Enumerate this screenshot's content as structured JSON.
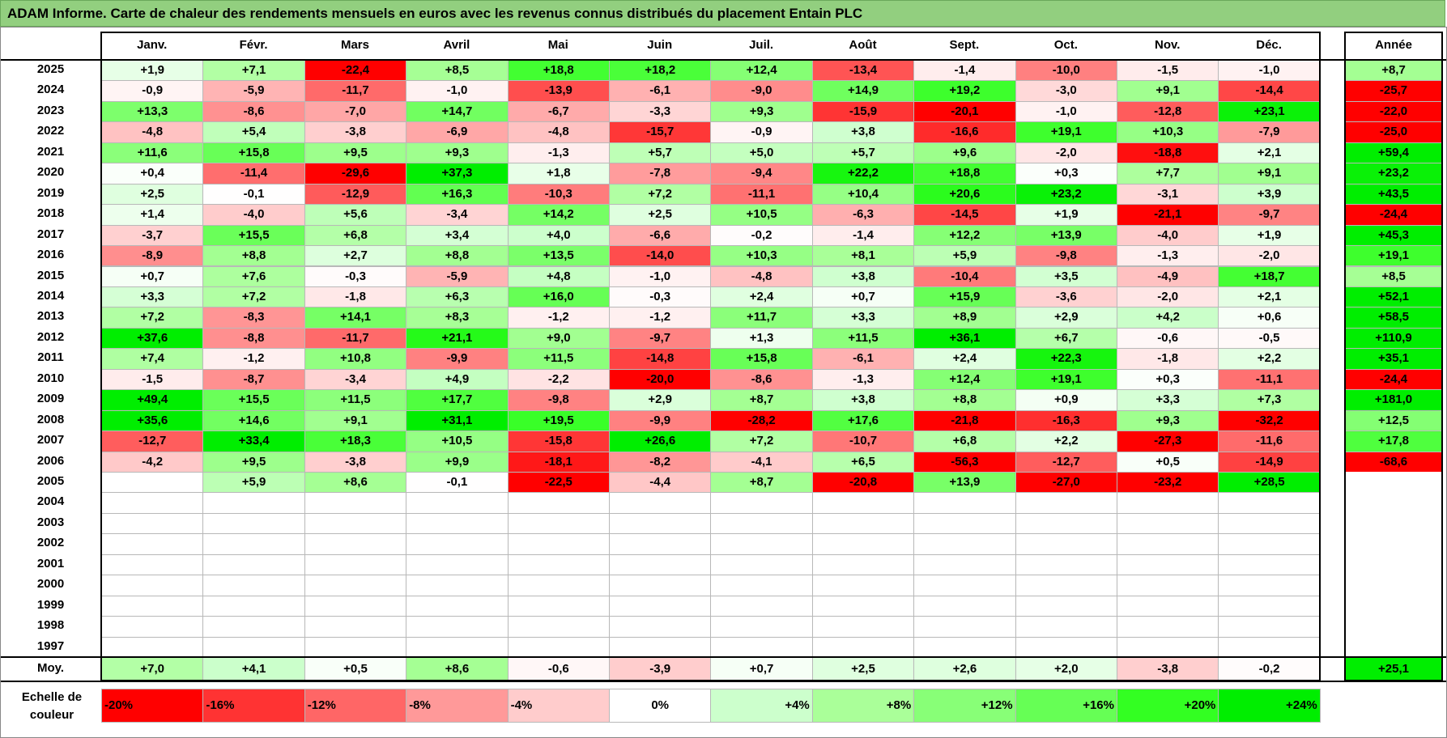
{
  "title": "ADAM Informe. Carte de chaleur des rendements mensuels en euros avec les revenus connus distribués du placement Entain PLC",
  "chart_data": {
    "type": "heatmap",
    "months": [
      "Janv.",
      "Févr.",
      "Mars",
      "Avril",
      "Mai",
      "Juin",
      "Juil.",
      "Août",
      "Sept.",
      "Oct.",
      "Nov.",
      "Déc."
    ],
    "year_header": "Année",
    "rows": [
      {
        "year": "2025",
        "values": [
          "+1,9",
          "+7,1",
          "-22,4",
          "+8,5",
          "+18,8",
          "+18,2",
          "+12,4",
          "-13,4",
          "-1,4",
          "-10,0",
          "-1,5",
          "-1,0"
        ],
        "annual": "+8,7"
      },
      {
        "year": "2024",
        "values": [
          "-0,9",
          "-5,9",
          "-11,7",
          "-1,0",
          "-13,9",
          "-6,1",
          "-9,0",
          "+14,9",
          "+19,2",
          "-3,0",
          "+9,1",
          "-14,4"
        ],
        "annual": "-25,7"
      },
      {
        "year": "2023",
        "values": [
          "+13,3",
          "-8,6",
          "-7,0",
          "+14,7",
          "-6,7",
          "-3,3",
          "+9,3",
          "-15,9",
          "-20,1",
          "-1,0",
          "-12,8",
          "+23,1"
        ],
        "annual": "-22,0"
      },
      {
        "year": "2022",
        "values": [
          "-4,8",
          "+5,4",
          "-3,8",
          "-6,9",
          "-4,8",
          "-15,7",
          "-0,9",
          "+3,8",
          "-16,6",
          "+19,1",
          "+10,3",
          "-7,9"
        ],
        "annual": "-25,0"
      },
      {
        "year": "2021",
        "values": [
          "+11,6",
          "+15,8",
          "+9,5",
          "+9,3",
          "-1,3",
          "+5,7",
          "+5,0",
          "+5,7",
          "+9,6",
          "-2,0",
          "-18,8",
          "+2,1"
        ],
        "annual": "+59,4"
      },
      {
        "year": "2020",
        "values": [
          "+0,4",
          "-11,4",
          "-29,6",
          "+37,3",
          "+1,8",
          "-7,8",
          "-9,4",
          "+22,2",
          "+18,8",
          "+0,3",
          "+7,7",
          "+9,1"
        ],
        "annual": "+23,2"
      },
      {
        "year": "2019",
        "values": [
          "+2,5",
          "-0,1",
          "-12,9",
          "+16,3",
          "-10,3",
          "+7,2",
          "-11,1",
          "+10,4",
          "+20,6",
          "+23,2",
          "-3,1",
          "+3,9"
        ],
        "annual": "+43,5"
      },
      {
        "year": "2018",
        "values": [
          "+1,4",
          "-4,0",
          "+5,6",
          "-3,4",
          "+14,2",
          "+2,5",
          "+10,5",
          "-6,3",
          "-14,5",
          "+1,9",
          "-21,1",
          "-9,7"
        ],
        "annual": "-24,4"
      },
      {
        "year": "2017",
        "values": [
          "-3,7",
          "+15,5",
          "+6,8",
          "+3,4",
          "+4,0",
          "-6,6",
          "-0,2",
          "-1,4",
          "+12,2",
          "+13,9",
          "-4,0",
          "+1,9"
        ],
        "annual": "+45,3"
      },
      {
        "year": "2016",
        "values": [
          "-8,9",
          "+8,8",
          "+2,7",
          "+8,8",
          "+13,5",
          "-14,0",
          "+10,3",
          "+8,1",
          "+5,9",
          "-9,8",
          "-1,3",
          "-2,0"
        ],
        "annual": "+19,1"
      },
      {
        "year": "2015",
        "values": [
          "+0,7",
          "+7,6",
          "-0,3",
          "-5,9",
          "+4,8",
          "-1,0",
          "-4,8",
          "+3,8",
          "-10,4",
          "+3,5",
          "-4,9",
          "+18,7"
        ],
        "annual": "+8,5"
      },
      {
        "year": "2014",
        "values": [
          "+3,3",
          "+7,2",
          "-1,8",
          "+6,3",
          "+16,0",
          "-0,3",
          "+2,4",
          "+0,7",
          "+15,9",
          "-3,6",
          "-2,0",
          "+2,1"
        ],
        "annual": "+52,1"
      },
      {
        "year": "2013",
        "values": [
          "+7,2",
          "-8,3",
          "+14,1",
          "+8,3",
          "-1,2",
          "-1,2",
          "+11,7",
          "+3,3",
          "+8,9",
          "+2,9",
          "+4,2",
          "+0,6"
        ],
        "annual": "+58,5"
      },
      {
        "year": "2012",
        "values": [
          "+37,6",
          "-8,8",
          "-11,7",
          "+21,1",
          "+9,0",
          "-9,7",
          "+1,3",
          "+11,5",
          "+36,1",
          "+6,7",
          "-0,6",
          "-0,5"
        ],
        "annual": "+110,9"
      },
      {
        "year": "2011",
        "values": [
          "+7,4",
          "-1,2",
          "+10,8",
          "-9,9",
          "+11,5",
          "-14,8",
          "+15,8",
          "-6,1",
          "+2,4",
          "+22,3",
          "-1,8",
          "+2,2"
        ],
        "annual": "+35,1"
      },
      {
        "year": "2010",
        "values": [
          "-1,5",
          "-8,7",
          "-3,4",
          "+4,9",
          "-2,2",
          "-20,0",
          "-8,6",
          "-1,3",
          "+12,4",
          "+19,1",
          "+0,3",
          "-11,1"
        ],
        "annual": "-24,4"
      },
      {
        "year": "2009",
        "values": [
          "+49,4",
          "+15,5",
          "+11,5",
          "+17,7",
          "-9,8",
          "+2,9",
          "+8,7",
          "+3,8",
          "+8,8",
          "+0,9",
          "+3,3",
          "+7,3"
        ],
        "annual": "+181,0"
      },
      {
        "year": "2008",
        "values": [
          "+35,6",
          "+14,6",
          "+9,1",
          "+31,1",
          "+19,5",
          "-9,9",
          "-28,2",
          "+17,6",
          "-21,8",
          "-16,3",
          "+9,3",
          "-32,2"
        ],
        "annual": "+12,5"
      },
      {
        "year": "2007",
        "values": [
          "-12,7",
          "+33,4",
          "+18,3",
          "+10,5",
          "-15,8",
          "+26,6",
          "+7,2",
          "-10,7",
          "+6,8",
          "+2,2",
          "-27,3",
          "-11,6"
        ],
        "annual": "+17,8"
      },
      {
        "year": "2006",
        "values": [
          "-4,2",
          "+9,5",
          "-3,8",
          "+9,9",
          "-18,1",
          "-8,2",
          "-4,1",
          "+6,5",
          "-56,3",
          "-12,7",
          "+0,5",
          "-14,9"
        ],
        "annual": "-68,6"
      },
      {
        "year": "2005",
        "values": [
          "",
          "+5,9",
          "+8,6",
          "-0,1",
          "-22,5",
          "-4,4",
          "+8,7",
          "-20,8",
          "+13,9",
          "-27,0",
          "-23,2",
          "+28,5"
        ],
        "annual": ""
      },
      {
        "year": "2004",
        "values": [
          "",
          "",
          "",
          "",
          "",
          "",
          "",
          "",
          "",
          "",
          "",
          ""
        ],
        "annual": ""
      },
      {
        "year": "2003",
        "values": [
          "",
          "",
          "",
          "",
          "",
          "",
          "",
          "",
          "",
          "",
          "",
          ""
        ],
        "annual": ""
      },
      {
        "year": "2002",
        "values": [
          "",
          "",
          "",
          "",
          "",
          "",
          "",
          "",
          "",
          "",
          "",
          ""
        ],
        "annual": ""
      },
      {
        "year": "2001",
        "values": [
          "",
          "",
          "",
          "",
          "",
          "",
          "",
          "",
          "",
          "",
          "",
          ""
        ],
        "annual": ""
      },
      {
        "year": "2000",
        "values": [
          "",
          "",
          "",
          "",
          "",
          "",
          "",
          "",
          "",
          "",
          "",
          ""
        ],
        "annual": ""
      },
      {
        "year": "1999",
        "values": [
          "",
          "",
          "",
          "",
          "",
          "",
          "",
          "",
          "",
          "",
          "",
          ""
        ],
        "annual": ""
      },
      {
        "year": "1998",
        "values": [
          "",
          "",
          "",
          "",
          "",
          "",
          "",
          "",
          "",
          "",
          "",
          ""
        ],
        "annual": ""
      },
      {
        "year": "1997",
        "values": [
          "",
          "",
          "",
          "",
          "",
          "",
          "",
          "",
          "",
          "",
          "",
          ""
        ],
        "annual": ""
      }
    ],
    "average": {
      "label": "Moy.",
      "values": [
        "+7,0",
        "+4,1",
        "+0,5",
        "+8,6",
        "-0,6",
        "-3,9",
        "+0,7",
        "+2,5",
        "+2,6",
        "+2,0",
        "-3,8",
        "-0,2"
      ],
      "annual": "+25,1"
    },
    "color_scale": {
      "label": "Echelle de couleur",
      "steps": [
        {
          "label": "-20%",
          "value": -20,
          "color": "#ff0000"
        },
        {
          "label": "-16%",
          "value": -16,
          "color": "#ff3333"
        },
        {
          "label": "-12%",
          "value": -12,
          "color": "#ff6666"
        },
        {
          "label": "-8%",
          "value": -8,
          "color": "#ff9999"
        },
        {
          "label": "-4%",
          "value": -4,
          "color": "#ffcccc"
        },
        {
          "label": "0%",
          "value": 0,
          "color": "#ffffff"
        },
        {
          "label": "+4%",
          "value": 4,
          "color": "#ccffcc"
        },
        {
          "label": "+8%",
          "value": 8,
          "color": "#aaff99"
        },
        {
          "label": "+12%",
          "value": 12,
          "color": "#88ff77"
        },
        {
          "label": "+16%",
          "value": 16,
          "color": "#66ff55"
        },
        {
          "label": "+20%",
          "value": 20,
          "color": "#33ff22"
        },
        {
          "label": "+24%",
          "value": 24,
          "color": "#00ee00"
        }
      ]
    }
  }
}
